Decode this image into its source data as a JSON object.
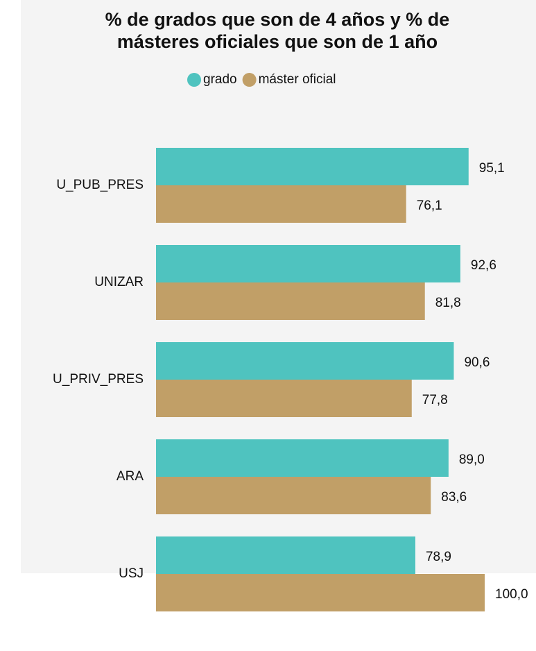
{
  "chart_data": {
    "type": "bar",
    "orientation": "horizontal",
    "title": [
      "% de grados que son de 4 años y % de",
      "másteres oficiales que son de 1 año"
    ],
    "categories": [
      "U_PUB_PRES",
      "UNIZAR",
      "U_PRIV_PRES",
      "ARA",
      "USJ"
    ],
    "series": [
      {
        "name": "grado",
        "color": "#4fc3bf",
        "values": [
          95.1,
          92.6,
          90.6,
          89.0,
          78.9
        ],
        "value_labels": [
          "95,1",
          "92,6",
          "90,6",
          "89,0",
          "78,9"
        ]
      },
      {
        "name": "máster oficial",
        "color": "#c19f67",
        "values": [
          76.1,
          81.8,
          77.8,
          83.6,
          100.0
        ],
        "value_labels": [
          "76,1",
          "81,8",
          "77,8",
          "83,6",
          "100,0"
        ]
      }
    ],
    "xlim": [
      0,
      100
    ],
    "legend": "top"
  }
}
